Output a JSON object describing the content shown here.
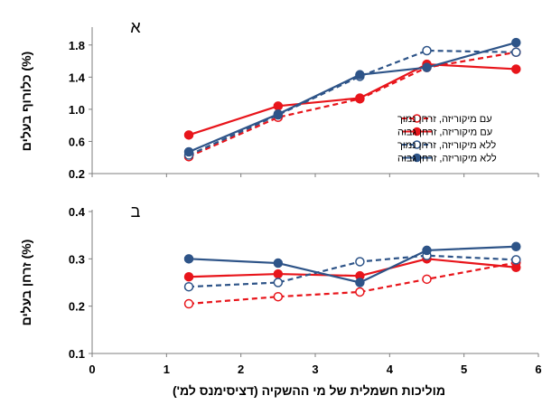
{
  "chart_data": [
    {
      "type": "line",
      "panel_label": "א",
      "ylabel": "כלורוף בעלים (%)",
      "ylim": [
        0.2,
        2.0
      ],
      "yticks": [
        "0.2",
        "0.6",
        "1.0",
        "1.4",
        "1.8"
      ],
      "xlim": [
        0,
        6
      ],
      "legend_position": "right",
      "series": [
        {
          "name": "עם מיקוריזה, זרחן נמוך",
          "color": "#e8151b",
          "dashed": true,
          "filled": false,
          "points": [
            [
              1.3,
              0.41
            ],
            [
              2.5,
              0.9
            ],
            [
              3.6,
              1.13
            ],
            [
              4.5,
              1.52
            ],
            [
              5.7,
              1.71
            ]
          ]
        },
        {
          "name": "עם מיקוריזה, זרחן גבוה",
          "color": "#e8151b",
          "dashed": false,
          "filled": true,
          "points": [
            [
              1.3,
              0.68
            ],
            [
              2.5,
              1.04
            ],
            [
              3.6,
              1.14
            ],
            [
              4.5,
              1.56
            ],
            [
              5.7,
              1.5
            ]
          ]
        },
        {
          "name": "ללא מיקוריזה, זרחן נמוך",
          "color": "#2e5488",
          "dashed": true,
          "filled": false,
          "points": [
            [
              1.3,
              0.43
            ],
            [
              2.5,
              0.93
            ],
            [
              3.6,
              1.41
            ],
            [
              4.5,
              1.73
            ],
            [
              5.7,
              1.71
            ]
          ]
        },
        {
          "name": "ללא מיקוריזה, זרחן גבוה",
          "color": "#2e5488",
          "dashed": false,
          "filled": true,
          "points": [
            [
              1.3,
              0.47
            ],
            [
              2.5,
              0.94
            ],
            [
              3.6,
              1.43
            ],
            [
              4.5,
              1.52
            ],
            [
              5.7,
              1.83
            ]
          ]
        }
      ]
    },
    {
      "type": "line",
      "panel_label": "ב",
      "ylabel": "זרחן בעלים (%)",
      "xlabel": "מוליכות חשמלית של מי ההשקיה (דציסימנס למ')",
      "ylim": [
        0.1,
        0.4
      ],
      "yticks": [
        "0.1",
        "0.2",
        "0.3",
        "0.4"
      ],
      "xlim": [
        0,
        6
      ],
      "xticks": [
        "0",
        "1",
        "2",
        "3",
        "4",
        "5",
        "6"
      ],
      "series": [
        {
          "name": "עם מיקוריזה, זרחן נמוך",
          "color": "#e8151b",
          "dashed": true,
          "filled": false,
          "points": [
            [
              1.3,
              0.205
            ],
            [
              2.5,
              0.22
            ],
            [
              3.6,
              0.23
            ],
            [
              4.5,
              0.257
            ],
            [
              5.7,
              0.292
            ]
          ]
        },
        {
          "name": "עם מיקוריזה, זרחן גבוה",
          "color": "#e8151b",
          "dashed": false,
          "filled": true,
          "points": [
            [
              1.3,
              0.262
            ],
            [
              2.5,
              0.268
            ],
            [
              3.6,
              0.264
            ],
            [
              4.5,
              0.3
            ],
            [
              5.7,
              0.282
            ]
          ]
        },
        {
          "name": "ללא מיקוריזה, זרחן נמוך",
          "color": "#2e5488",
          "dashed": true,
          "filled": false,
          "points": [
            [
              1.3,
              0.241
            ],
            [
              2.5,
              0.25
            ],
            [
              3.6,
              0.294
            ],
            [
              4.5,
              0.307
            ],
            [
              5.7,
              0.298
            ]
          ]
        },
        {
          "name": "ללא מיקוריזה, זרחן גבוה",
          "color": "#2e5488",
          "dashed": false,
          "filled": true,
          "points": [
            [
              1.3,
              0.3
            ],
            [
              2.5,
              0.291
            ],
            [
              3.6,
              0.25
            ],
            [
              4.5,
              0.318
            ],
            [
              5.7,
              0.326
            ]
          ]
        }
      ]
    }
  ]
}
